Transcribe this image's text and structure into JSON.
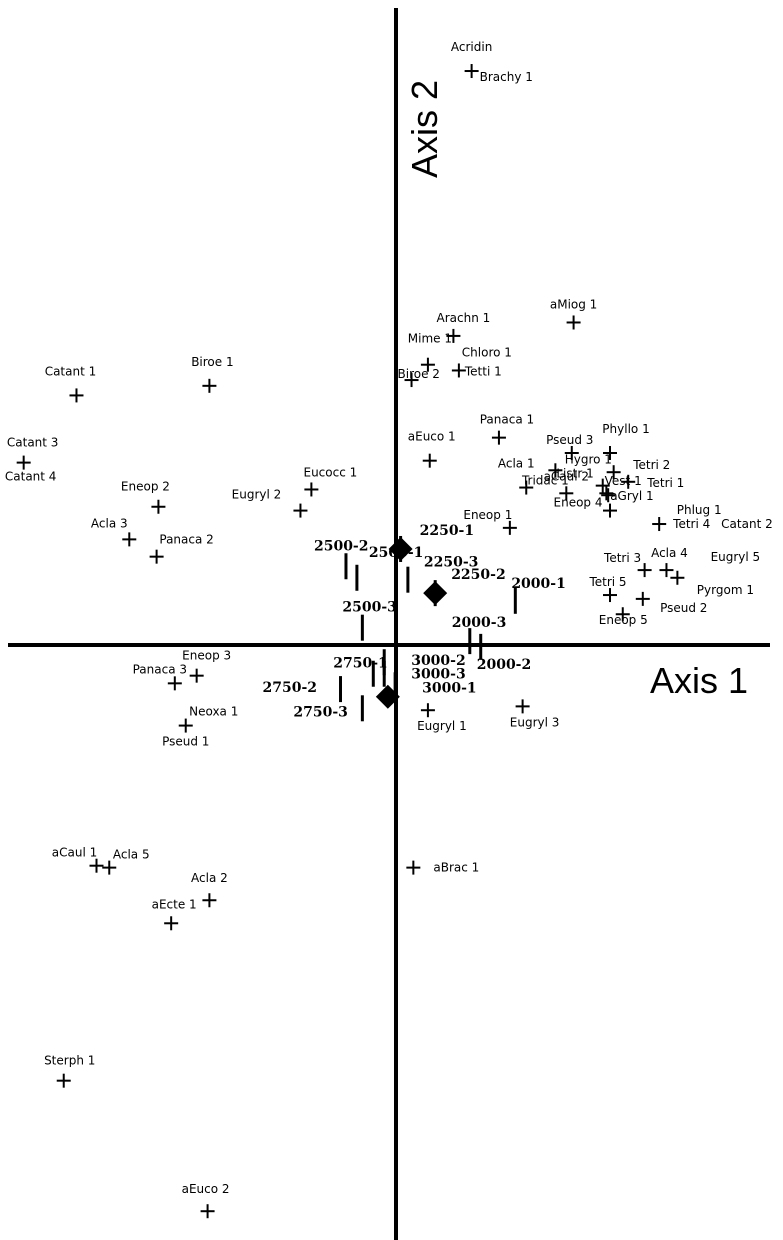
{
  "chart_data": {
    "type": "scatter",
    "x_axis_label": "Axis 1",
    "y_axis_label": "Axis 2",
    "species_points": [
      {
        "label": "Acridin",
        "x": 1.95,
        "y": 14.65
      },
      {
        "label": "Brachy 1",
        "x": 1.95,
        "y": 14.65
      },
      {
        "label": "aMiog 1",
        "x": 4.75,
        "y": 8.1
      },
      {
        "label": "Arachn 1",
        "x": 1.45,
        "y": 7.75
      },
      {
        "label": "Mime 1",
        "x": 0.75,
        "y": 7.0
      },
      {
        "label": "Chloro 1",
        "x": 1.6,
        "y": 6.85
      },
      {
        "label": "Tetti 1",
        "x": 1.6,
        "y": 6.85
      },
      {
        "label": "Biroe 2",
        "x": 0.3,
        "y": 6.6
      },
      {
        "label": "Biroe 1",
        "x": -5.25,
        "y": 6.45
      },
      {
        "label": "Catant 1",
        "x": -8.9,
        "y": 6.2
      },
      {
        "label": "Panaca 1",
        "x": 2.7,
        "y": 5.1
      },
      {
        "label": "Pseud 3",
        "x": 4.7,
        "y": 4.7
      },
      {
        "label": "Phyllo 1",
        "x": 5.75,
        "y": 4.7
      },
      {
        "label": "aEuco 1",
        "x": 0.8,
        "y": 4.5
      },
      {
        "label": "Catant 3",
        "x": -10.35,
        "y": 4.45
      },
      {
        "label": "Catant 4",
        "x": -10.35,
        "y": 4.45
      },
      {
        "label": "Tridac 1",
        "x": 4.25,
        "y": 4.25
      },
      {
        "label": "Vest 1",
        "x": 5.85,
        "y": 4.2
      },
      {
        "label": "Acla 1",
        "x": 3.45,
        "y": 3.8
      },
      {
        "label": "Hygro 1",
        "x": 5.55,
        "y": 3.85
      },
      {
        "label": "Tetri 2",
        "x": 6.25,
        "y": 3.95
      },
      {
        "label": "Tetri 1",
        "x": 6.25,
        "y": 3.95
      },
      {
        "label": "Listr 1",
        "x": 5.65,
        "y": 3.65
      },
      {
        "label": "aGryl 1",
        "x": 5.7,
        "y": 3.6
      },
      {
        "label": "Eucocc 1",
        "x": -2.45,
        "y": 3.75
      },
      {
        "label": "Eneop 2",
        "x": -6.65,
        "y": 3.3
      },
      {
        "label": "Eugryl 2",
        "x": -2.75,
        "y": 3.2
      },
      {
        "label": "aCaul 2",
        "x": 4.55,
        "y": 3.65
      },
      {
        "label": "Eneop 4",
        "x": 5.75,
        "y": 3.2
      },
      {
        "label": "Phlug 1",
        "x": 7.1,
        "y": 2.85
      },
      {
        "label": "Eneop 1",
        "x": 3.0,
        "y": 2.75
      },
      {
        "label": "Tetri 4",
        "x": 7.1,
        "y": 2.85
      },
      {
        "label": "Catant 2",
        "x": 7.1,
        "y": 2.85
      },
      {
        "label": "Acla 3",
        "x": -7.45,
        "y": 2.45
      },
      {
        "label": "Panaca 2",
        "x": -6.7,
        "y": 2.0
      },
      {
        "label": "Pyrgom 1",
        "x": 7.6,
        "y": 1.45
      },
      {
        "label": "Acla 4",
        "x": 7.3,
        "y": 1.65
      },
      {
        "label": "Tetri 3",
        "x": 6.7,
        "y": 1.65
      },
      {
        "label": "Eugryl 5",
        "x": 7.6,
        "y": 1.45
      },
      {
        "label": "Tetri 5",
        "x": 5.75,
        "y": 1.0
      },
      {
        "label": "Pseud 2",
        "x": 6.65,
        "y": 0.9
      },
      {
        "label": "Eneop 5",
        "x": 6.1,
        "y": 0.5
      },
      {
        "label": "Eneop 3",
        "x": -5.6,
        "y": -1.1
      },
      {
        "label": "Panaca 3",
        "x": -6.2,
        "y": -1.3
      },
      {
        "label": "Neoxa 1",
        "x": -5.9,
        "y": -2.4
      },
      {
        "label": "Pseud 1",
        "x": -5.9,
        "y": -2.4
      },
      {
        "label": "Eugryl 1",
        "x": 0.75,
        "y": -2.0
      },
      {
        "label": "Eugryl 3",
        "x": 3.35,
        "y": -1.9
      },
      {
        "label": "aCaul 1",
        "x": -8.35,
        "y": -6.05
      },
      {
        "label": "Acla 5",
        "x": -8.0,
        "y": -6.1
      },
      {
        "label": "aBrac 1",
        "x": 0.35,
        "y": -6.1
      },
      {
        "label": "Acla 2",
        "x": -5.25,
        "y": -6.95
      },
      {
        "label": "aEcte 1",
        "x": -6.3,
        "y": -7.55
      },
      {
        "label": "Sterph 1",
        "x": -9.25,
        "y": -11.65
      },
      {
        "label": "aEuco 2",
        "x": -5.3,
        "y": -15.05
      }
    ],
    "sample_points": [
      {
        "label": "2250-1",
        "x": 0.0,
        "y": 2.2
      },
      {
        "label": "2250-3",
        "x": 0.2,
        "y": 1.4
      },
      {
        "label": "2250-2",
        "x": 0.95,
        "y": 1.05
      },
      {
        "label": "2500-2",
        "x": -1.5,
        "y": 1.75
      },
      {
        "label": "2500-1",
        "x": -1.2,
        "y": 1.45
      },
      {
        "label": "2500-3",
        "x": -1.05,
        "y": 0.15
      },
      {
        "label": "2000-1",
        "x": 3.15,
        "y": 0.85
      },
      {
        "label": "2000-3",
        "x": 1.9,
        "y": -0.2
      },
      {
        "label": "2000-2",
        "x": 2.2,
        "y": -0.35
      },
      {
        "label": "2750-1",
        "x": -0.75,
        "y": -1.05
      },
      {
        "label": "2750-2",
        "x": -1.65,
        "y": -1.45
      },
      {
        "label": "2750-3",
        "x": -1.05,
        "y": -1.95
      },
      {
        "label": "3000-2",
        "x": -0.45,
        "y": -0.75
      },
      {
        "label": "3000-3",
        "x": -0.45,
        "y": -1.05
      },
      {
        "label": "3000-1",
        "x": -0.15,
        "y": -1.35
      }
    ],
    "centroids": [
      {
        "x": 0.0,
        "y": 2.2
      },
      {
        "x": 0.95,
        "y": 1.05
      },
      {
        "x": -0.35,
        "y": -1.65
      }
    ],
    "xlim": [
      -11.0,
      10.5
    ],
    "ylim": [
      -15.8,
      16.5
    ],
    "grid": false,
    "legend": "none"
  }
}
